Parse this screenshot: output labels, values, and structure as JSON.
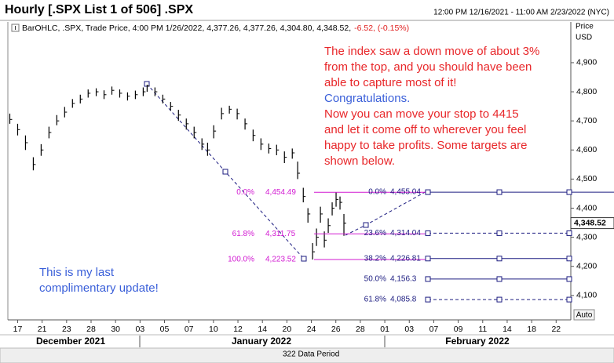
{
  "chart_data": {
    "type": "ohlc",
    "title": "Hourly [.SPX List 1 of 506] .SPX",
    "date_range": "12:00 PM 12/16/2021 - 11:00 AM 2/23/2022 (NYC)",
    "info": "BarOHLC, .SPX, Trade Price, 4:00 PM 1/26/2022, 4,377.26, 4,377.26, 4,304.80, 4,348.52,",
    "change": "-6.52, (-0.15%)",
    "y_axis_label": [
      "Price",
      "USD"
    ],
    "auto_button": "Auto",
    "data_period": "322 Data Period",
    "months": [
      "December 2021",
      "January 2022",
      "February 2022"
    ],
    "color": "#000000",
    "xlim": [
      -0.4,
      22.6
    ],
    "ylim": [
      4016,
      5040
    ],
    "xticks": [
      {
        "value": 0,
        "label": "17"
      },
      {
        "value": 1,
        "label": "21"
      },
      {
        "value": 2,
        "label": "23"
      },
      {
        "value": 3,
        "label": "28"
      },
      {
        "value": 4,
        "label": "30"
      },
      {
        "value": 5,
        "label": "03"
      },
      {
        "value": 6,
        "label": "05"
      },
      {
        "value": 7,
        "label": "07"
      },
      {
        "value": 8,
        "label": "10"
      },
      {
        "value": 9,
        "label": "12"
      },
      {
        "value": 10,
        "label": "14"
      },
      {
        "value": 11,
        "label": "20"
      },
      {
        "value": 12,
        "label": "24"
      },
      {
        "value": 13,
        "label": "26"
      },
      {
        "value": 14,
        "label": "28"
      },
      {
        "value": 15,
        "label": "01"
      },
      {
        "value": 16,
        "label": "03"
      },
      {
        "value": 17,
        "label": "07"
      },
      {
        "value": 18,
        "label": "09"
      },
      {
        "value": 19,
        "label": "11"
      },
      {
        "value": 20,
        "label": "14"
      },
      {
        "value": 21,
        "label": "18"
      },
      {
        "value": 22,
        "label": "22"
      }
    ],
    "yticks": [
      {
        "value": 4100,
        "label": "4,100"
      },
      {
        "value": 4200,
        "label": "4,200"
      },
      {
        "value": 4300,
        "label": "4,300"
      },
      {
        "value": 4400,
        "label": "4,400"
      },
      {
        "value": 4500,
        "label": "4,500"
      },
      {
        "value": 4600,
        "label": "4,600"
      },
      {
        "value": 4700,
        "label": "4,700"
      },
      {
        "value": 4800,
        "label": "4,800"
      },
      {
        "value": 4900,
        "label": "4,900"
      }
    ],
    "x": [
      -0.32,
      0,
      0.32,
      0.64,
      0.96,
      1.28,
      1.6,
      1.92,
      2.24,
      2.56,
      2.88,
      3.21,
      3.53,
      3.85,
      4.17,
      4.49,
      4.81,
      5.13,
      5.29,
      5.61,
      5.93,
      6.25,
      6.57,
      6.89,
      7.21,
      7.53,
      7.76,
      8.01,
      8.33,
      8.65,
      8.97,
      9.29,
      9.62,
      9.94,
      10.26,
      10.58,
      10.9,
      11.22,
      11.44,
      11.67,
      11.86,
      12.05,
      12.21,
      12.37,
      12.53,
      12.69,
      12.85,
      13.01,
      13.17,
      13.33
    ],
    "high": [
      4725,
      4690,
      4650,
      4575,
      4620,
      4680,
      4720,
      4748,
      4775,
      4790,
      4808,
      4812,
      4805,
      4818,
      4808,
      4798,
      4804,
      4815,
      4824,
      4815,
      4790,
      4765,
      4738,
      4708,
      4680,
      4640,
      4625,
      4685,
      4745,
      4752,
      4742,
      4708,
      4670,
      4640,
      4622,
      4618,
      4595,
      4605,
      4560,
      4470,
      4400,
      4280,
      4330,
      4405,
      4320,
      4365,
      4420,
      4454,
      4440,
      4380
    ],
    "low": [
      4690,
      4650,
      4600,
      4530,
      4580,
      4640,
      4685,
      4712,
      4745,
      4760,
      4780,
      4785,
      4775,
      4790,
      4780,
      4770,
      4775,
      4785,
      4800,
      4785,
      4760,
      4735,
      4700,
      4670,
      4640,
      4600,
      4580,
      4640,
      4705,
      4725,
      4705,
      4670,
      4630,
      4600,
      4588,
      4582,
      4555,
      4570,
      4500,
      4420,
      4350,
      4223.52,
      4270,
      4350,
      4265,
      4315,
      4375,
      4405,
      4395,
      4305
    ],
    "close": [
      4705,
      4670,
      4625,
      4550,
      4600,
      4660,
      4700,
      4730,
      4760,
      4775,
      4795,
      4800,
      4790,
      4805,
      4795,
      4785,
      4790,
      4800,
      4820,
      4800,
      4775,
      4750,
      4720,
      4690,
      4660,
      4620,
      4600,
      4665,
      4725,
      4740,
      4725,
      4690,
      4650,
      4620,
      4605,
      4600,
      4575,
      4590,
      4520,
      4440,
      4380,
      4250,
      4300,
      4380,
      4290,
      4340,
      4400,
      4430,
      4420,
      4348.52
    ],
    "last_price": {
      "value": 4348.52,
      "label": "4,348.52"
    },
    "retracement_color": "#d21ad2",
    "retracements": [
      {
        "level": "0.0%",
        "value": 4454.49,
        "label": "4,454.49"
      },
      {
        "level": "61.8%",
        "value": 4311.75,
        "label": "4,311.75"
      },
      {
        "level": "100.0%",
        "value": 4223.52,
        "label": "4,223.52"
      }
    ],
    "extension_color": "#1c1c80",
    "extensions": [
      {
        "level": "0.0%",
        "value": 4455.04,
        "label": "4,455.04"
      },
      {
        "level": "23.6%",
        "value": 4314.04,
        "label": "4,314.04"
      },
      {
        "level": "38.2%",
        "value": 4226.81,
        "label": "4,226.81"
      },
      {
        "level": "50.0%",
        "value": 4156.3,
        "label": "4,156.3"
      },
      {
        "level": "61.8%",
        "value": 4085.8,
        "label": "4,085.8"
      }
    ],
    "note_red_1": [
      "The index saw a down move of about 3%",
      "from the top, and you should have been",
      "able to capture most of it!"
    ],
    "note_blue": "Congratulations.",
    "note_red_2": [
      "Now you can move your stop to 4415",
      "and let it come off to wherever you feel",
      "happy to take profits. Some targets are",
      "shown below."
    ],
    "note_bottom": [
      "This is my last",
      "complimentary update!"
    ]
  }
}
